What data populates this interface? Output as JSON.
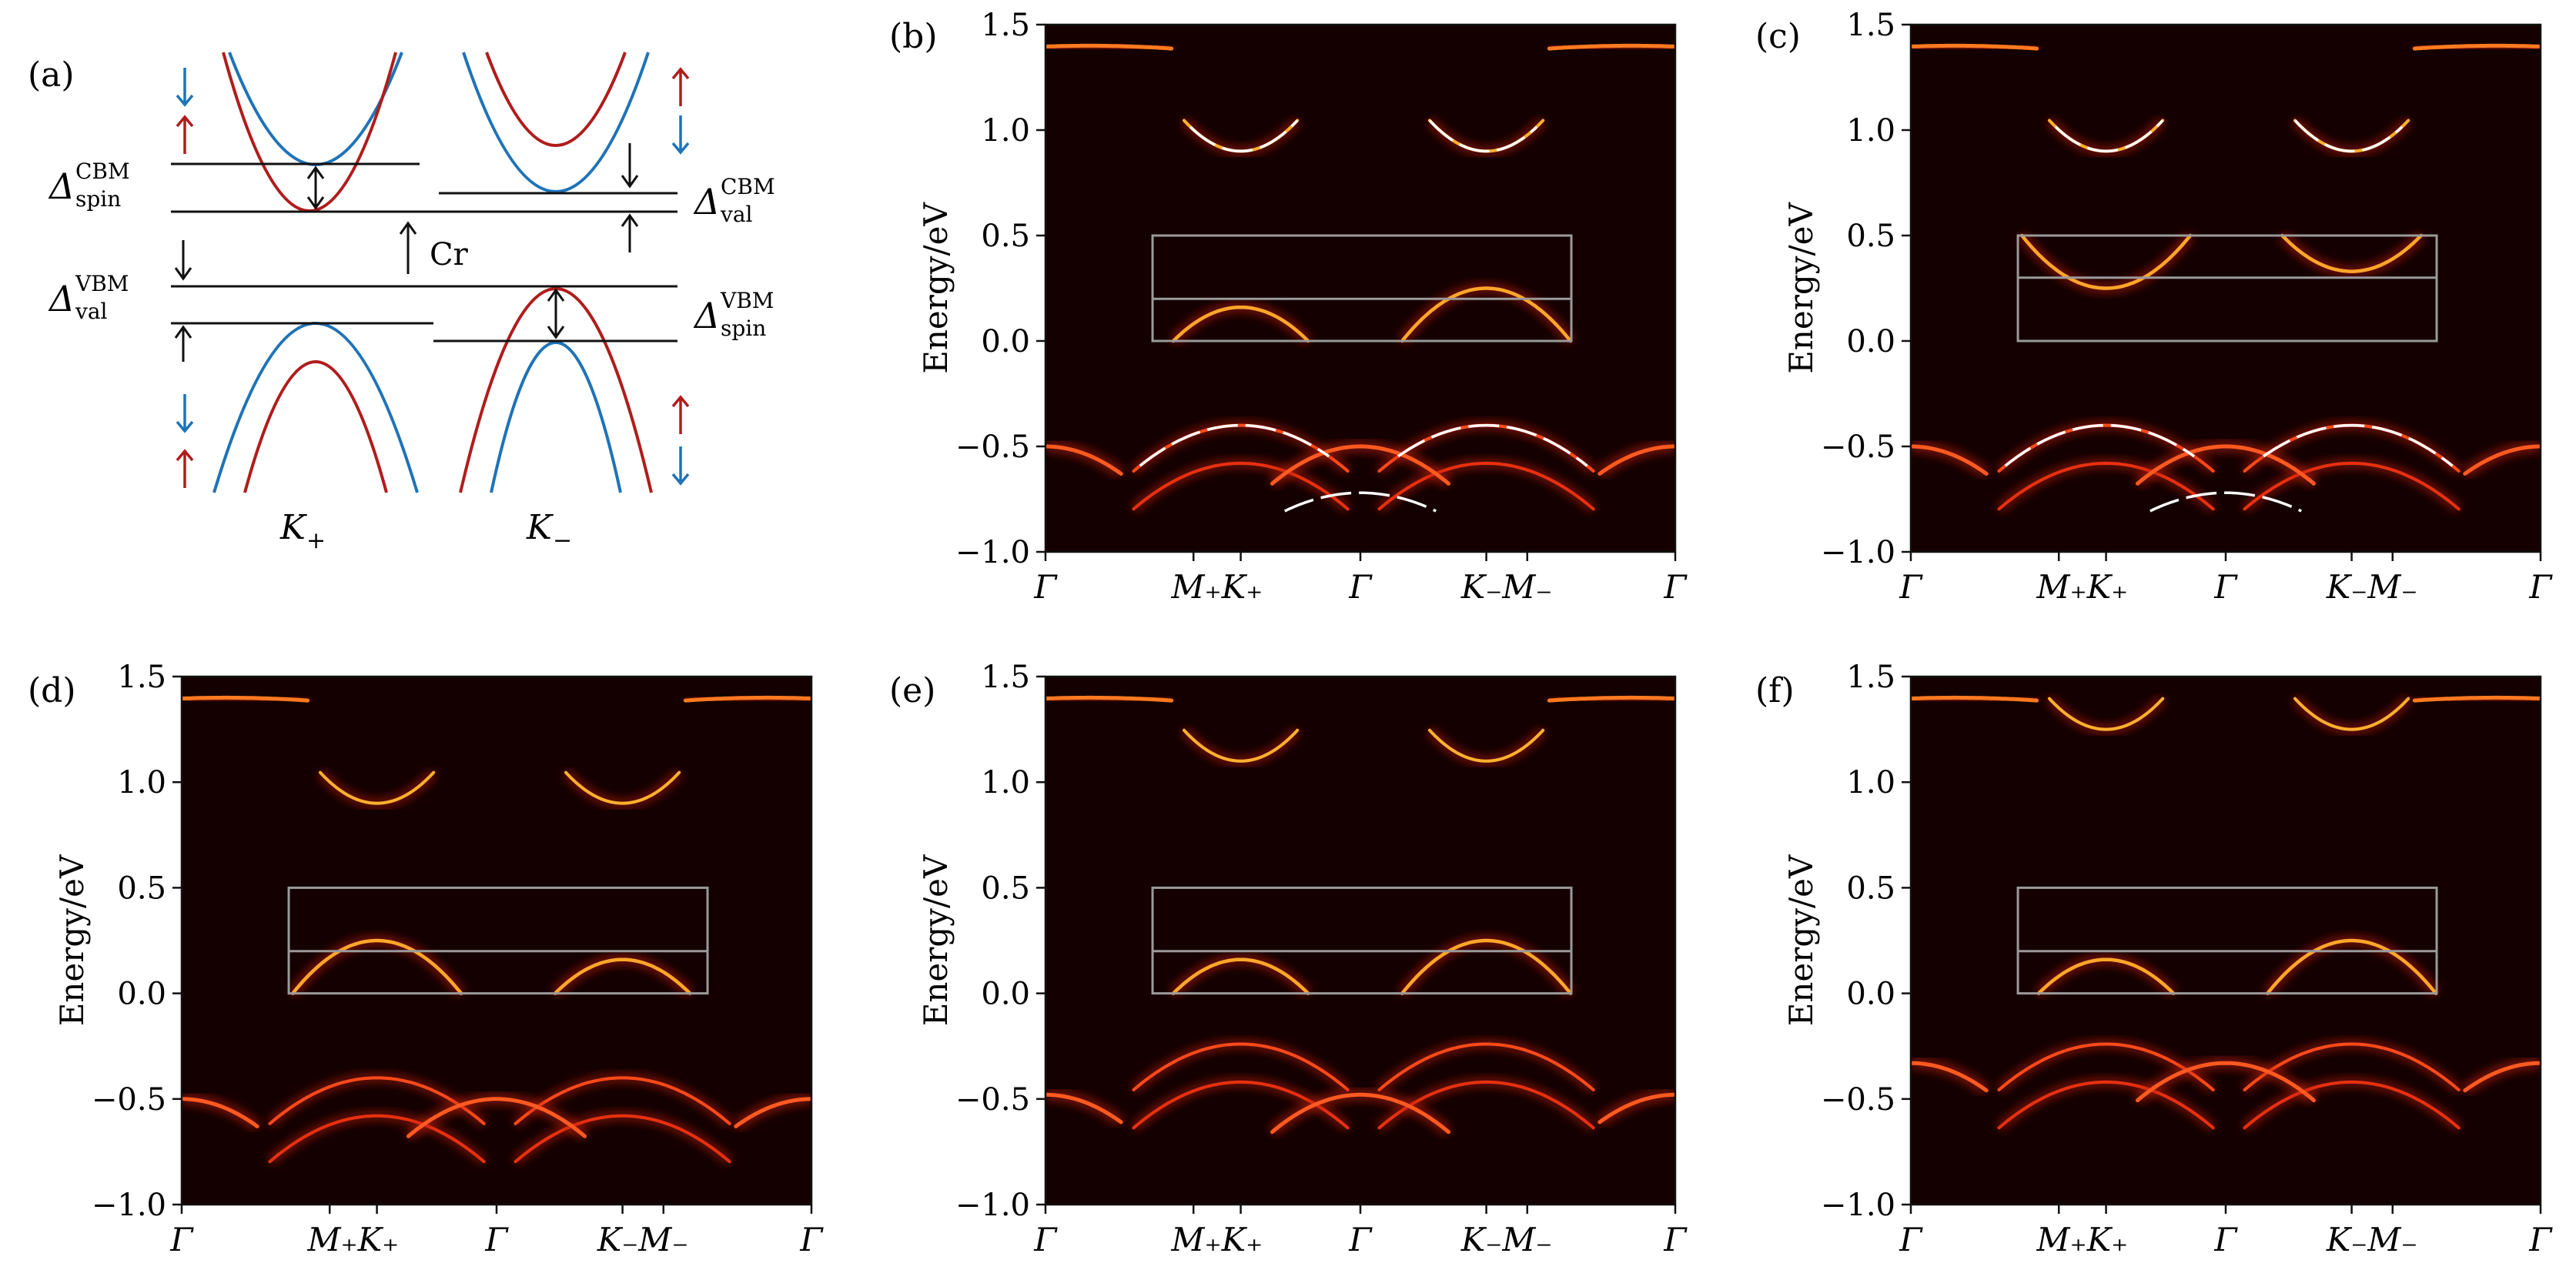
{
  "figure": {
    "panel_a": {
      "label": "(a)",
      "spin_label_cbm": "Δ",
      "spin_sup_cbm": "CBM",
      "spin_sub_cbm": "spin",
      "val_label_cbm": "Δ",
      "val_sup_cbm": "CBM",
      "val_sub_cbm": "val",
      "val_label_vbm": "Δ",
      "val_sup_vbm": "VBM",
      "val_sub_vbm": "val",
      "spin_label_vbm": "Δ",
      "spin_sup_vbm": "VBM",
      "spin_sub_vbm": "spin",
      "cr_label": "Cr",
      "k_plus": "K",
      "k_plus_sub": "+",
      "k_minus": "K",
      "k_minus_sub": "−",
      "colors": {
        "spin_up": "#b01c1c",
        "spin_down": "#1f73b7"
      }
    }
  },
  "chart_data": [
    {
      "type": "heatmap",
      "label": "(b)",
      "ylabel": "Energy/eV",
      "ylim": [
        -1.0,
        1.5
      ],
      "yticks": [
        "1.5",
        "1.0",
        "0.5",
        "0.0",
        "−0.5",
        "−1.0"
      ],
      "xticks": [
        "Γ",
        "M₊K₊",
        "Γ",
        "K₋M₋",
        "Γ"
      ],
      "inset_box": {
        "e_min": 0.0,
        "e_max": 0.5,
        "line": 0.2
      },
      "mid_bands": [
        {
          "center_k": "K+",
          "peak": 0.16
        },
        {
          "center_k": "K-",
          "peak": 0.25
        }
      ],
      "valence_peaks": {
        "Gamma": -0.5,
        "K+": -0.4,
        "K-": -0.4
      },
      "conduction_min": {
        "K+": 0.9,
        "K-": 0.9
      },
      "overlay_dft": true
    },
    {
      "type": "heatmap",
      "label": "(c)",
      "ylabel": "Energy/eV",
      "ylim": [
        -1.0,
        1.5
      ],
      "yticks": [
        "1.5",
        "1.0",
        "0.5",
        "0.0",
        "−0.5",
        "−1.0"
      ],
      "xticks": [
        "Γ",
        "M₊K₊",
        "Γ",
        "K₋M₋",
        "Γ"
      ],
      "inset_box": {
        "e_min": 0.0,
        "e_max": 0.5,
        "line": 0.3
      },
      "mid_bands": [
        {
          "center_k": "K+",
          "peak": 0.25,
          "shape": "upward"
        },
        {
          "center_k": "K-",
          "peak": 0.33,
          "shape": "upward"
        }
      ],
      "valence_peaks": {
        "Gamma": -0.5,
        "K+": -0.4,
        "K-": -0.4
      },
      "conduction_min": {
        "K+": 0.9,
        "K-": 0.9
      },
      "overlay_dft": true
    },
    {
      "type": "heatmap",
      "label": "(d)",
      "ylabel": "Energy/eV",
      "ylim": [
        -1.0,
        1.5
      ],
      "yticks": [
        "1.5",
        "1.0",
        "0.5",
        "0.0",
        "−0.5",
        "−1.0"
      ],
      "xticks": [
        "Γ",
        "M₊K₊",
        "Γ",
        "K₋M₋",
        "Γ"
      ],
      "inset_box": {
        "e_min": 0.0,
        "e_max": 0.5,
        "line": 0.2
      },
      "mid_bands": [
        {
          "center_k": "K+",
          "peak": 0.25
        },
        {
          "center_k": "K-",
          "peak": 0.16
        }
      ],
      "valence_peaks": {
        "Gamma": -0.5,
        "K+": -0.4,
        "K-": -0.4
      },
      "conduction_min": {
        "K+": 0.9,
        "K-": 0.9
      },
      "overlay_dft": false
    },
    {
      "type": "heatmap",
      "label": "(e)",
      "ylabel": "Energy/eV",
      "ylim": [
        -1.0,
        1.5
      ],
      "yticks": [
        "1.5",
        "1.0",
        "0.5",
        "0.0",
        "−0.5",
        "−1.0"
      ],
      "xticks": [
        "Γ",
        "M₊K₊",
        "Γ",
        "K₋M₋",
        "Γ"
      ],
      "inset_box": {
        "e_min": 0.0,
        "e_max": 0.5,
        "line": 0.2
      },
      "mid_bands": [
        {
          "center_k": "K+",
          "peak": 0.16
        },
        {
          "center_k": "K-",
          "peak": 0.25
        }
      ],
      "valence_peaks": {
        "Gamma": -0.48,
        "K+": -0.24,
        "K-": -0.24
      },
      "conduction_min": {
        "K+": 1.1,
        "K-": 1.1
      },
      "overlay_dft": false
    },
    {
      "type": "heatmap",
      "label": "(f)",
      "ylabel": "Energy/eV",
      "ylim": [
        -1.0,
        1.5
      ],
      "yticks": [
        "1.5",
        "1.0",
        "0.5",
        "0.0",
        "−0.5",
        "−1.0"
      ],
      "xticks": [
        "Γ",
        "M₊K₊",
        "Γ",
        "K₋M₋",
        "Γ"
      ],
      "inset_box": {
        "e_min": 0.0,
        "e_max": 0.5,
        "line": 0.2
      },
      "mid_bands": [
        {
          "center_k": "K+",
          "peak": 0.16
        },
        {
          "center_k": "K-",
          "peak": 0.25
        }
      ],
      "valence_peaks": {
        "Gamma": -0.33,
        "K+": -0.24,
        "K-": -0.24
      },
      "conduction_min": {
        "K+": 1.25,
        "K-": 1.25
      },
      "overlay_dft": false
    }
  ]
}
